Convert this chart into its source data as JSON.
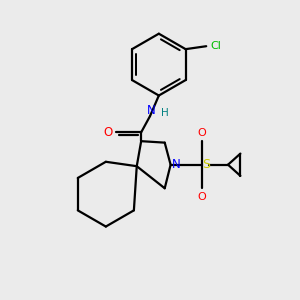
{
  "bg_color": "#ebebeb",
  "atom_colors": {
    "N": "#0000ff",
    "O": "#ff0000",
    "S": "#cccc00",
    "Cl": "#00bb00",
    "H": "#008080"
  },
  "bond_color": "#000000",
  "bond_width": 1.6
}
